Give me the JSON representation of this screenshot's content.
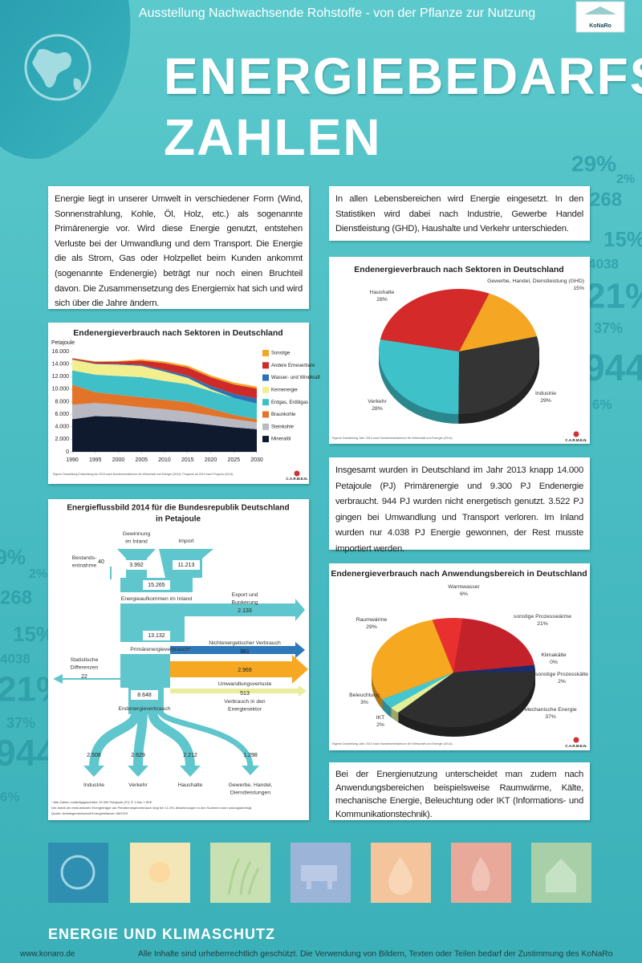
{
  "header": {
    "exhibition": "Ausstellung Nachwachsende Rohstoffe - von der Pflanze zur Nutzung",
    "title_line1": "ENERGIEBEDARFS-",
    "title_line2": "ZAHLEN",
    "logo": "KoNaRo"
  },
  "paragraphs": [
    "Energie liegt in unserer Umwelt in verschiedener Form (Wind, Sonnenstrahlung, Kohle, Öl, Holz, etc.) als sogenannte Primärenergie vor. Wird diese Energie genutzt, entstehen Verluste bei der Umwandlung und dem Transport. Die Energie die als Strom, Gas oder Holzpellet beim Kunden ankommt (sogenannte Endenergie) beträgt nur noch einen Bruchteil davon. Die Zusammensetzung des Energiemix hat sich und wird sich über die Jahre ändern.",
    "In allen Lebensbereichen wird Energie eingesetzt. In den Statistiken wird dabei nach Industrie, Gewerbe Handel Dienstleistung (GHD), Haushalte und Verkehr unterschieden.",
    "Insgesamt wurden in Deutschland im Jahr 2013 knapp 14.000 Petajoule (PJ) Primärenergie und 9.300 PJ Endenergie verbraucht. 944 PJ wurden nicht energetisch genutzt. 3.522 PJ gingen bei Umwandlung und Transport verloren. Im Inland wurden nur 4.038 PJ Energie gewonnen, der Rest musste importiert werden.",
    "Bei der Energienutzung unterscheidet man zudem nach Anwendungsbereichen beispielsweise Raumwärme, Kälte, mechanische Energie, Beleuchtung oder IKT (Informations- und Kommunikationstechnik)."
  ],
  "decor_numbers": [
    "29%",
    "2%",
    "268",
    "15%",
    "4038",
    "21%",
    "37%",
    "944",
    "6%"
  ],
  "chart_data": [
    {
      "type": "area",
      "stacked": true,
      "title": "Endenergieverbrauch nach Sektoren in Deutschland",
      "y_label": "Petajoule",
      "x": [
        1990,
        1995,
        2000,
        2005,
        2010,
        2015,
        2020,
        2025,
        2030
      ],
      "xlim": [
        1990,
        2030
      ],
      "xticks": [
        1990,
        1995,
        2000,
        2005,
        2010,
        2015,
        2020,
        2025,
        2030
      ],
      "ylim": [
        0,
        16000
      ],
      "yticks": [
        0,
        {
          "value": 2000,
          "label": "2.000"
        },
        {
          "value": 4000,
          "label": "4.000"
        },
        {
          "value": 6000,
          "label": "6.000"
        },
        {
          "value": 8000,
          "label": "8.000"
        },
        {
          "value": 10000,
          "label": "10.000"
        },
        {
          "value": 12000,
          "label": "12.000"
        },
        {
          "value": 14000,
          "label": "14.000"
        },
        {
          "value": 16000,
          "label": "16.000"
        }
      ],
      "series": [
        {
          "name": "Mineralöl",
          "color": "#0f1a2e",
          "values": [
            5200,
            5700,
            5600,
            5300,
            5000,
            4700,
            4300,
            3900,
            3600
          ]
        },
        {
          "name": "Steinkohle",
          "color": "#b9b9c3",
          "values": [
            2300,
            2100,
            1900,
            1800,
            1800,
            1700,
            1500,
            1300,
            1100
          ]
        },
        {
          "name": "Braunkohle",
          "color": "#e2742a",
          "values": [
            3200,
            1700,
            1600,
            1600,
            1500,
            1500,
            1100,
            700,
            500
          ]
        },
        {
          "name": "Erdgas, Erdölgas",
          "color": "#3fc0c8",
          "values": [
            2300,
            2800,
            3000,
            3200,
            3000,
            2900,
            2800,
            2700,
            2500
          ]
        },
        {
          "name": "Kernenergie",
          "color": "#f3ef8e",
          "values": [
            1700,
            1700,
            1800,
            1800,
            1500,
            1000,
            300,
            0,
            0
          ]
        },
        {
          "name": "Wasser- und Windkraft",
          "color": "#2a72b5",
          "values": [
            60,
            90,
            130,
            150,
            250,
            350,
            500,
            650,
            800
          ]
        },
        {
          "name": "Andere Erneuerbare",
          "color": "#cf2a2a",
          "values": [
            150,
            250,
            350,
            700,
            1100,
            1300,
            1400,
            1500,
            1600
          ]
        },
        {
          "name": "Sonstige",
          "color": "#f5a623",
          "values": [
            50,
            100,
            100,
            200,
            250,
            300,
            300,
            300,
            300
          ]
        }
      ],
      "source": "Eigene Darstellung Entwicklung bis 2013 nach Bundesministerium für Wirtschaft und Energie (2014). Progress ab 2014 nach Prognos (2014).",
      "logo": "C.A.R.M.E.N."
    },
    {
      "type": "pie",
      "title": "Endenergieverbrauch nach Sektoren in Deutschland",
      "categories": [
        "Gewerbe, Handel, Dienstleistung (GHD)",
        "Industrie",
        "Verkehr",
        "Haushalte"
      ],
      "values": [
        15,
        29,
        28,
        28
      ],
      "value_labels": [
        "15%",
        "29%",
        "28%",
        "28%"
      ],
      "colors": [
        "#f5a623",
        "#343434",
        "#3ec1c9",
        "#d42a2a"
      ],
      "source": "Eigene Darstellung Jahr 2013 nach Bundesministerium für Wirtschaft und Energie (2014)",
      "logo": "C.A.R.M.E.N."
    },
    {
      "type": "pie",
      "title": "Endenergieverbrauch nach Anwendungsbereich in Deutschland",
      "categories": [
        "Warmwasser",
        "sonstige Prozesswärme",
        "Klimakälte",
        "sonstige Prozesskälte",
        "Mechanische Energie",
        "IKT",
        "Beleuchtung",
        "Raumwärme"
      ],
      "values": [
        6,
        21,
        0,
        2,
        37,
        2,
        3,
        29
      ],
      "value_labels": [
        "6%",
        "21%",
        "0%",
        "2%",
        "37%",
        "2%",
        "3%",
        "29%"
      ],
      "colors": [
        "#e8312f",
        "#c4222a",
        "#1b8fcf",
        "#1d2d6b",
        "#2f2f2f",
        "#e4ef9a",
        "#45c6cf",
        "#f6a821"
      ],
      "source": "Eigene Darstellung Jahr 2013 nach Bundesministerium für Wirtschaft und Energie (2014)",
      "logo": "C.A.R.M.E.N."
    }
  ],
  "flow": {
    "title_line1": "Energieflussbild 2014 für die Bundesrepublik Deutschland",
    "title_line2": "in Petajoule",
    "nodes": [
      {
        "label": [
          "Gewinnung",
          "im Inland"
        ],
        "value": "3.992"
      },
      {
        "label": [
          "Import"
        ],
        "value": "11.213"
      },
      {
        "label": [
          "Bestands-",
          "entnahme"
        ],
        "value": "40"
      },
      {
        "label": [
          "Energieaufkommen im Inland"
        ],
        "value": "15.265"
      },
      {
        "label": [
          "Export und",
          "Bunkerung"
        ],
        "value": "2.133"
      },
      {
        "label": [
          "Primärenergieverbrauch*"
        ],
        "value": "13.132"
      },
      {
        "label": [
          "Nichtenergetischer Verbrauch"
        ],
        "value": "981"
      },
      {
        "label": [
          "Statistische",
          "Differenzen"
        ],
        "value": "22"
      },
      {
        "label": [
          "Umwandlungsverluste"
        ],
        "value": "2.969"
      },
      {
        "label": [
          "Verbrauch in den",
          "Energiesektor"
        ],
        "value": "513"
      },
      {
        "label": [
          "Endenergieverbrauch"
        ],
        "value": "8.648"
      },
      {
        "label": [
          "Industrie"
        ],
        "value": "2.508"
      },
      {
        "label": [
          "Verkehr"
        ],
        "value": "2.629"
      },
      {
        "label": [
          "Haushalte"
        ],
        "value": "2.212"
      },
      {
        "label": [
          "Gewerbe, Handel,",
          "Dienstleistungen"
        ],
        "value": "1.298"
      }
    ],
    "notes": [
      "* Alle Zahlen vorläufig/geschätzt; 29.300 Petajoule (PJ) ≙ 1 Mio. t SKE",
      "Der Anteil der erneuerbaren Energieträger am Primärenergieverbrauch liegt bei 11,3%; Abweichungen in den Summen sind rundungsbedingt.",
      "Quelle: Arbeitsgemeinschaft Energiebilanzen 08/2015"
    ]
  },
  "footer": {
    "section": "ENERGIE UND KLIMASCHUTZ",
    "url": "www.konaro.de",
    "copyright": "Alle Inhalte sind urheberrechtlich geschützt. Die Verwendung von Bildern, Texten oder Teilen bedarf der Zustimmung des KoNaRo"
  }
}
